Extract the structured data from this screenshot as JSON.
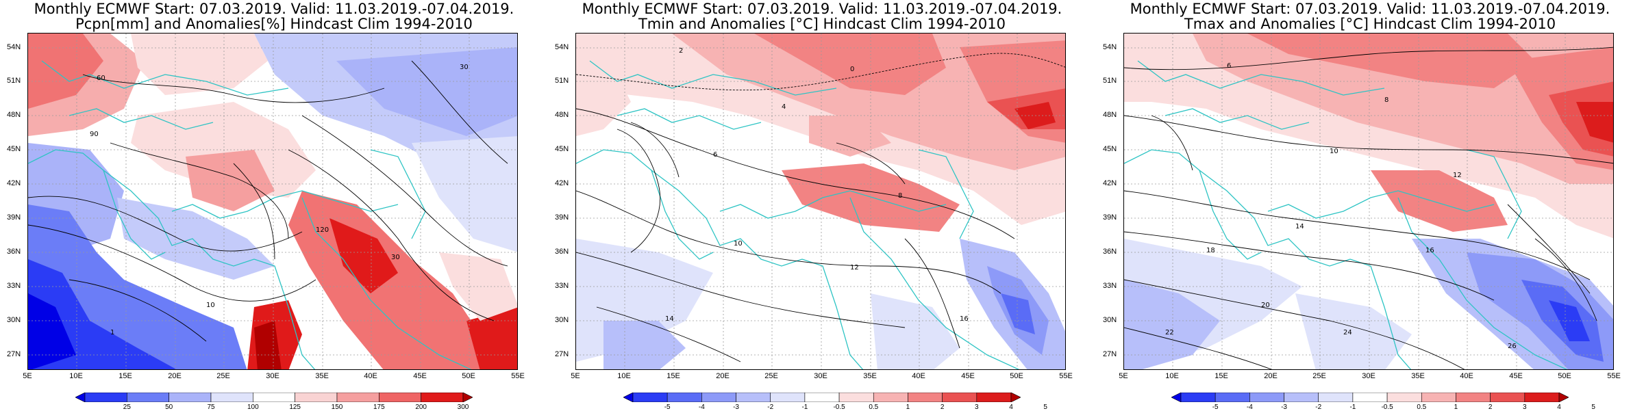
{
  "panels": [
    {
      "id": "pcpn",
      "title_line1": "Monthly ECMWF Start: 07.03.2019. Valid: 11.03.2019.-07.04.2019.",
      "title_line2": "Pcpn[mm] and Anomalies[%] Hindcast Clim 1994-2010",
      "colorbar_labels": [
        "25",
        "50",
        "75",
        "100",
        "125",
        "150",
        "175",
        "200",
        "300"
      ],
      "colorbar_colors": [
        "#0000e6",
        "#2b3cf5",
        "#6b7df7",
        "#aab3f9",
        "#dfe3fb",
        "#ffffff",
        "#f9d3d3",
        "#f59f9f",
        "#ef6464",
        "#e01a1a",
        "#b00000"
      ],
      "contour_labels": [
        "30",
        "60",
        "90",
        "120",
        "10",
        "1",
        "30"
      ]
    },
    {
      "id": "tmin",
      "title_line1": "Monthly ECMWF Start: 07.03.2019. Valid: 11.03.2019.-07.04.2019.",
      "title_line2": "Tmin and Anomalies [°C] Hindcast Clim 1994-2010",
      "colorbar_labels": [
        "-5",
        "-4",
        "-3",
        "-2",
        "-1",
        "-0.5",
        "0.5",
        "1",
        "2",
        "3",
        "4",
        "5"
      ],
      "colorbar_colors": [
        "#0000e6",
        "#2b3cf5",
        "#5a6cf6",
        "#8d9af8",
        "#b7bffa",
        "#dfe3fb",
        "#ffffff",
        "#fbdede",
        "#f7b3b3",
        "#f28383",
        "#ea5252",
        "#dc1c1c",
        "#b00000"
      ],
      "contour_labels": [
        "2",
        "0",
        "4",
        "6",
        "8",
        "10",
        "12",
        "14",
        "16"
      ]
    },
    {
      "id": "tmax",
      "title_line1": "Monthly ECMWF Start: 07.03.2019. Valid: 11.03.2019.-07.04.2019.",
      "title_line2": "Tmax and Anomalies [°C] Hindcast Clim 1994-2010",
      "colorbar_labels": [
        "-5",
        "-4",
        "-3",
        "-2",
        "-1",
        "-0.5",
        "0.5",
        "1",
        "2",
        "3",
        "4",
        "5"
      ],
      "colorbar_colors": [
        "#0000e6",
        "#2b3cf5",
        "#5a6cf6",
        "#8d9af8",
        "#b7bffa",
        "#dfe3fb",
        "#ffffff",
        "#fbdede",
        "#f7b3b3",
        "#f28383",
        "#ea5252",
        "#dc1c1c",
        "#b00000"
      ],
      "contour_labels": [
        "6",
        "8",
        "10",
        "12",
        "14",
        "16",
        "18",
        "20",
        "22",
        "24",
        "26"
      ]
    }
  ],
  "lat_labels": [
    "54N",
    "51N",
    "48N",
    "45N",
    "42N",
    "39N",
    "36N",
    "33N",
    "30N",
    "27N"
  ],
  "lon_labels": [
    "5E",
    "10E",
    "15E",
    "20E",
    "25E",
    "30E",
    "35E",
    "40E",
    "45E",
    "50E",
    "55E"
  ],
  "colors": {
    "coastline": "#2ec4c4",
    "contour": "#000000",
    "grid": "#9a9a9a"
  }
}
